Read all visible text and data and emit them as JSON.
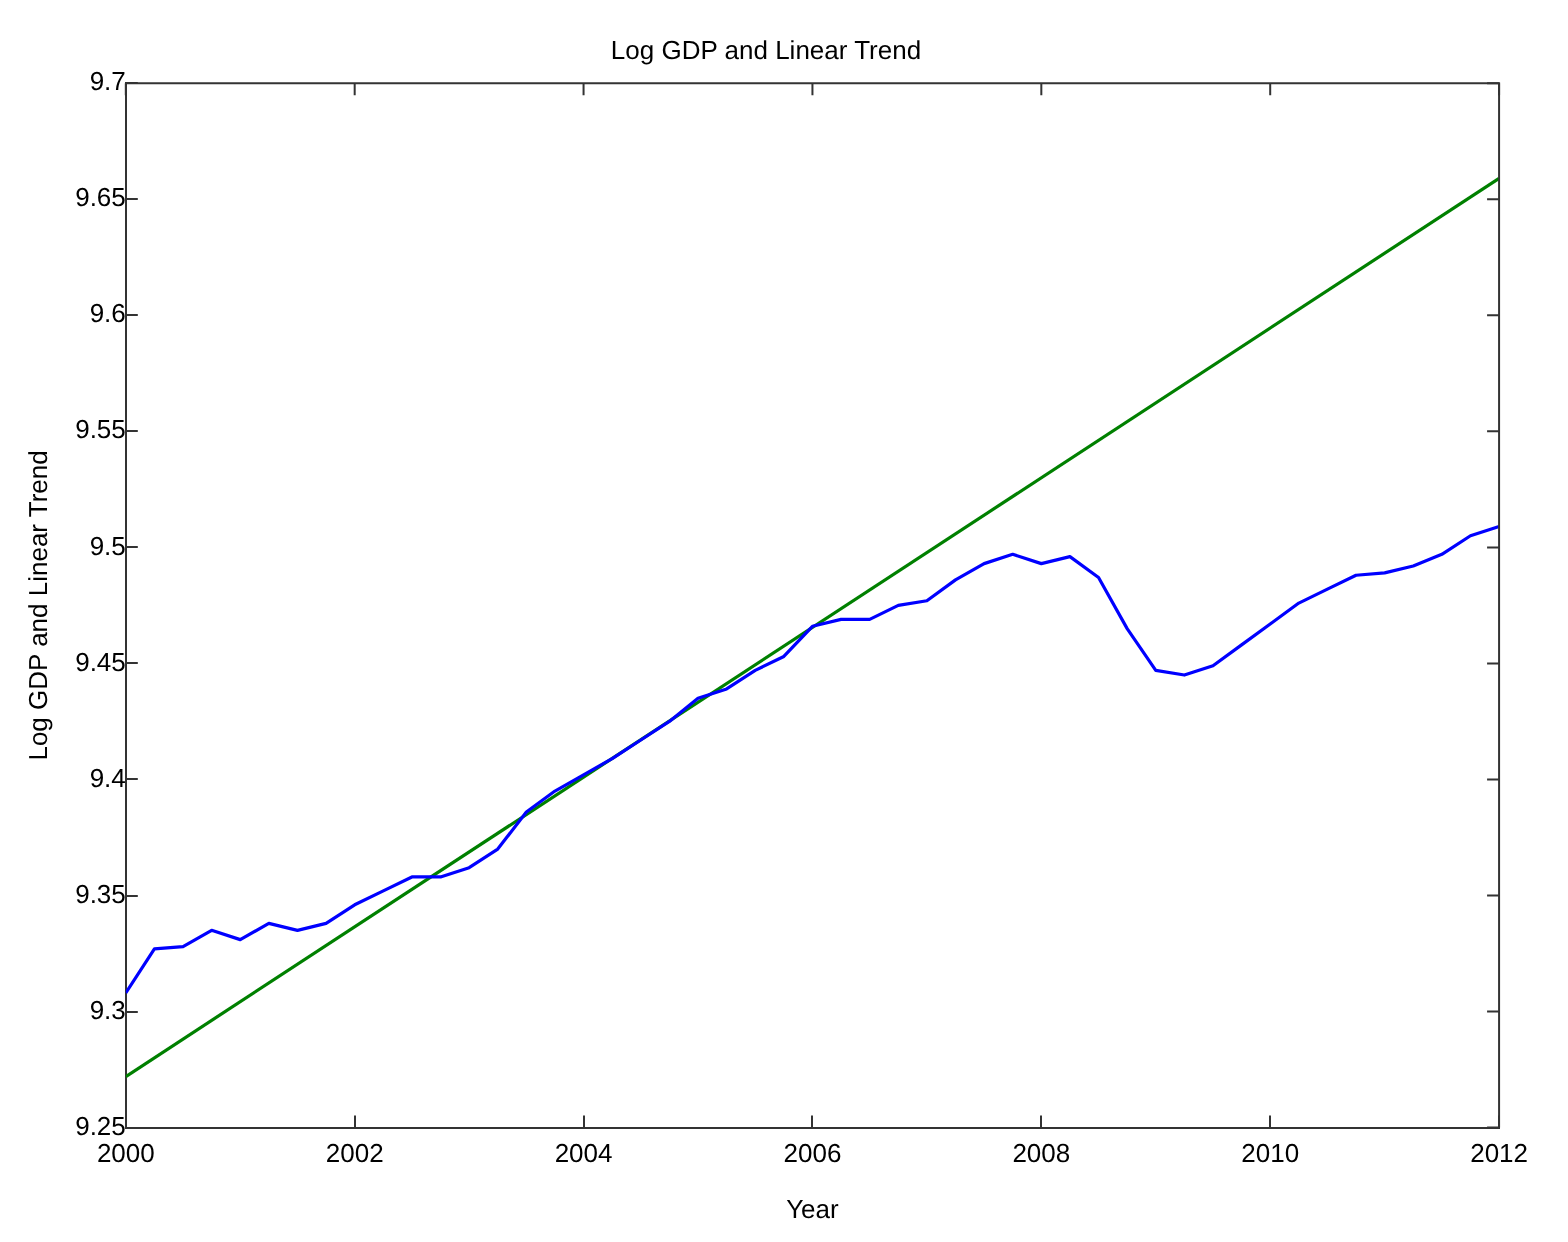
{
  "chart_data": {
    "type": "line",
    "title": "Log GDP and Linear Trend",
    "xlabel": "Year",
    "ylabel": "Log GDP and Linear Trend",
    "xlim": [
      2000,
      2012
    ],
    "xticks": [
      2000,
      2002,
      2004,
      2006,
      2008,
      2010,
      2012
    ],
    "ylim": [
      9.25,
      9.7
    ],
    "yticks": [
      9.25,
      9.3,
      9.35,
      9.4,
      9.45,
      9.5,
      9.55,
      9.6,
      9.65,
      9.7
    ],
    "grid": false,
    "legend": false,
    "marker": "none",
    "line_style": "solid",
    "series": [
      {
        "color": "#0000ff",
        "x": [
          2000,
          2000.25,
          2000.5,
          2000.75,
          2001,
          2001.25,
          2001.5,
          2001.75,
          2002,
          2002.25,
          2002.5,
          2002.75,
          2003,
          2003.25,
          2003.5,
          2003.75,
          2004,
          2004.25,
          2004.5,
          2004.75,
          2005,
          2005.25,
          2005.5,
          2005.75,
          2006,
          2006.25,
          2006.5,
          2006.75,
          2007,
          2007.25,
          2007.5,
          2007.75,
          2008,
          2008.25,
          2008.5,
          2008.75,
          2009,
          2009.25,
          2009.5,
          2009.75,
          2010,
          2010.25,
          2010.5,
          2010.75,
          2011,
          2011.25,
          2011.5,
          2011.75,
          2012
        ],
        "values": [
          9.308,
          9.327,
          9.328,
          9.335,
          9.331,
          9.338,
          9.335,
          9.338,
          9.346,
          9.352,
          9.358,
          9.358,
          9.362,
          9.37,
          9.386,
          9.395,
          9.402,
          9.409,
          9.417,
          9.425,
          9.435,
          9.439,
          9.447,
          9.453,
          9.466,
          9.469,
          9.469,
          9.475,
          9.477,
          9.486,
          9.493,
          9.497,
          9.493,
          9.496,
          9.487,
          9.465,
          9.447,
          9.445,
          9.449,
          9.458,
          9.467,
          9.476,
          9.482,
          9.488,
          9.489,
          9.492,
          9.497,
          9.505,
          9.509
        ]
      },
      {
        "color": "#008000",
        "x": [
          2000,
          2012
        ],
        "values": [
          9.272,
          9.659
        ]
      }
    ]
  }
}
